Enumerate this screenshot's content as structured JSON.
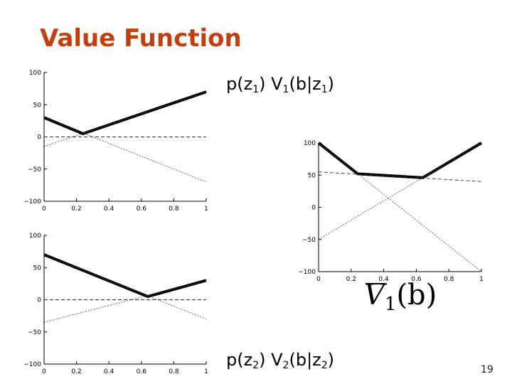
{
  "slide": {
    "title": "Value Function",
    "page_number": "19"
  },
  "captions": {
    "top": {
      "p": "p(z",
      "sub1": "1",
      "mid": ") V",
      "sub2": "1",
      "b": "(b|z",
      "sub3": "1",
      "end": ")"
    },
    "bottom": {
      "p": "p(z",
      "sub1": "2",
      "mid": ") V",
      "sub2": "2",
      "b": "(b|z",
      "sub3": "2",
      "end": ")"
    }
  },
  "value_label": {
    "v": "V",
    "sub": "1",
    "arg": "(b)"
  },
  "chart_data": [
    {
      "type": "line",
      "xlim": [
        0,
        1
      ],
      "ylim": [
        -100,
        100
      ],
      "xticks": [
        "0",
        "0.2",
        "0.4",
        "0.6",
        "0.8",
        "1"
      ],
      "yticks": [
        "100",
        "50",
        "0",
        "−50",
        "−100"
      ],
      "series": [
        {
          "style": "thick",
          "x": [
            0,
            0.24,
            1
          ],
          "y": [
            30,
            5,
            70
          ]
        },
        {
          "style": "dashed",
          "x": [
            0,
            1
          ],
          "y": [
            0,
            0
          ]
        },
        {
          "style": "dotted",
          "x": [
            0,
            1
          ],
          "y": [
            -15,
            70
          ]
        },
        {
          "style": "dotted",
          "x": [
            0,
            1
          ],
          "y": [
            30,
            -70
          ]
        }
      ]
    },
    {
      "type": "line",
      "xlim": [
        0,
        1
      ],
      "ylim": [
        -100,
        100
      ],
      "xticks": [
        "0",
        "0.2",
        "0.4",
        "0.6",
        "0.8",
        "1"
      ],
      "yticks": [
        "100",
        "50",
        "0",
        "−50",
        "−100"
      ],
      "series": [
        {
          "style": "thick",
          "x": [
            0,
            0.64,
            1
          ],
          "y": [
            70,
            5,
            30
          ]
        },
        {
          "style": "dashed",
          "x": [
            0,
            1
          ],
          "y": [
            0,
            0
          ]
        },
        {
          "style": "dotted",
          "x": [
            0,
            1
          ],
          "y": [
            70,
            -30
          ]
        },
        {
          "style": "dotted",
          "x": [
            0,
            1
          ],
          "y": [
            -35,
            30
          ]
        }
      ]
    },
    {
      "type": "line",
      "xlim": [
        0,
        1
      ],
      "ylim": [
        -100,
        100
      ],
      "xticks": [
        "0",
        "0.2",
        "0.4",
        "0.6",
        "0.8",
        "1"
      ],
      "yticks": [
        "100",
        "50",
        "0",
        "−50",
        "−100"
      ],
      "series": [
        {
          "style": "thick",
          "x": [
            0,
            0.24,
            0.64,
            1
          ],
          "y": [
            100,
            52,
            46,
            100
          ]
        },
        {
          "style": "dashed",
          "x": [
            0,
            1
          ],
          "y": [
            55,
            40
          ]
        },
        {
          "style": "dotted",
          "x": [
            0,
            1
          ],
          "y": [
            100,
            -100
          ]
        },
        {
          "style": "dotted",
          "x": [
            0,
            1
          ],
          "y": [
            -50,
            100
          ]
        }
      ]
    }
  ]
}
